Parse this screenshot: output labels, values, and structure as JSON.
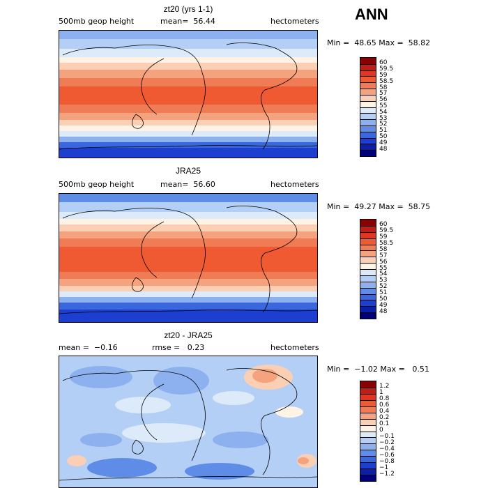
{
  "season": "ANN",
  "panels": [
    {
      "id": "model",
      "title": "zt20 (yrs 1-1)",
      "left_label": "500mb geop height",
      "center_label": "mean=  56.44",
      "units": "hectometers",
      "minmax": "Min =  48.65 Max =  58.82",
      "colorbar": {
        "labels": [
          "60",
          "59.5",
          "59",
          "58.5",
          "58",
          "57",
          "56",
          "55",
          "54",
          "53",
          "52",
          "51",
          "50",
          "49",
          "48"
        ],
        "colors": [
          "#8b0000",
          "#bf1d16",
          "#e03520",
          "#ef5a33",
          "#f07c55",
          "#f4a37e",
          "#fbcfb4",
          "#fff3e6",
          "#dceafa",
          "#b4cff5",
          "#8db1ef",
          "#5f8ce6",
          "#3a66de",
          "#1c3fcf",
          "#0a1ea8",
          "#00007c"
        ]
      }
    },
    {
      "id": "obs",
      "title": "JRA25",
      "left_label": "500mb geop height",
      "center_label": "mean=  56.60",
      "units": "hectometers",
      "minmax": "Min =  49.27 Max =  58.75",
      "colorbar": {
        "labels": [
          "60",
          "59.5",
          "59",
          "58.5",
          "58",
          "57",
          "56",
          "55",
          "54",
          "53",
          "52",
          "51",
          "50",
          "49",
          "48"
        ],
        "colors": [
          "#8b0000",
          "#bf1d16",
          "#e03520",
          "#ef5a33",
          "#f07c55",
          "#f4a37e",
          "#fbcfb4",
          "#fff3e6",
          "#dceafa",
          "#b4cff5",
          "#8db1ef",
          "#5f8ce6",
          "#3a66de",
          "#1c3fcf",
          "#0a1ea8",
          "#00007c"
        ]
      }
    },
    {
      "id": "diff",
      "title": "zt20 - JRA25",
      "left_label": "mean =  −0.16",
      "center_label": "rmse =   0.23",
      "units": "hectometers",
      "minmax": "Min =  −1.02 Max =   0.51",
      "colorbar": {
        "labels": [
          "1.2",
          "1",
          "0.8",
          "0.6",
          "0.4",
          "0.2",
          "0.1",
          "0",
          "−0.1",
          "−0.2",
          "−0.4",
          "−0.6",
          "−0.8",
          "−1",
          "−1.2"
        ],
        "colors": [
          "#8b0000",
          "#bf1d16",
          "#e03520",
          "#ef5a33",
          "#f07c55",
          "#f4a37e",
          "#fbcfb4",
          "#fff3e6",
          "#dceafa",
          "#b4cff5",
          "#8db1ef",
          "#5f8ce6",
          "#3a66de",
          "#1c3fcf",
          "#0a1ea8",
          "#00007c"
        ]
      }
    }
  ]
}
